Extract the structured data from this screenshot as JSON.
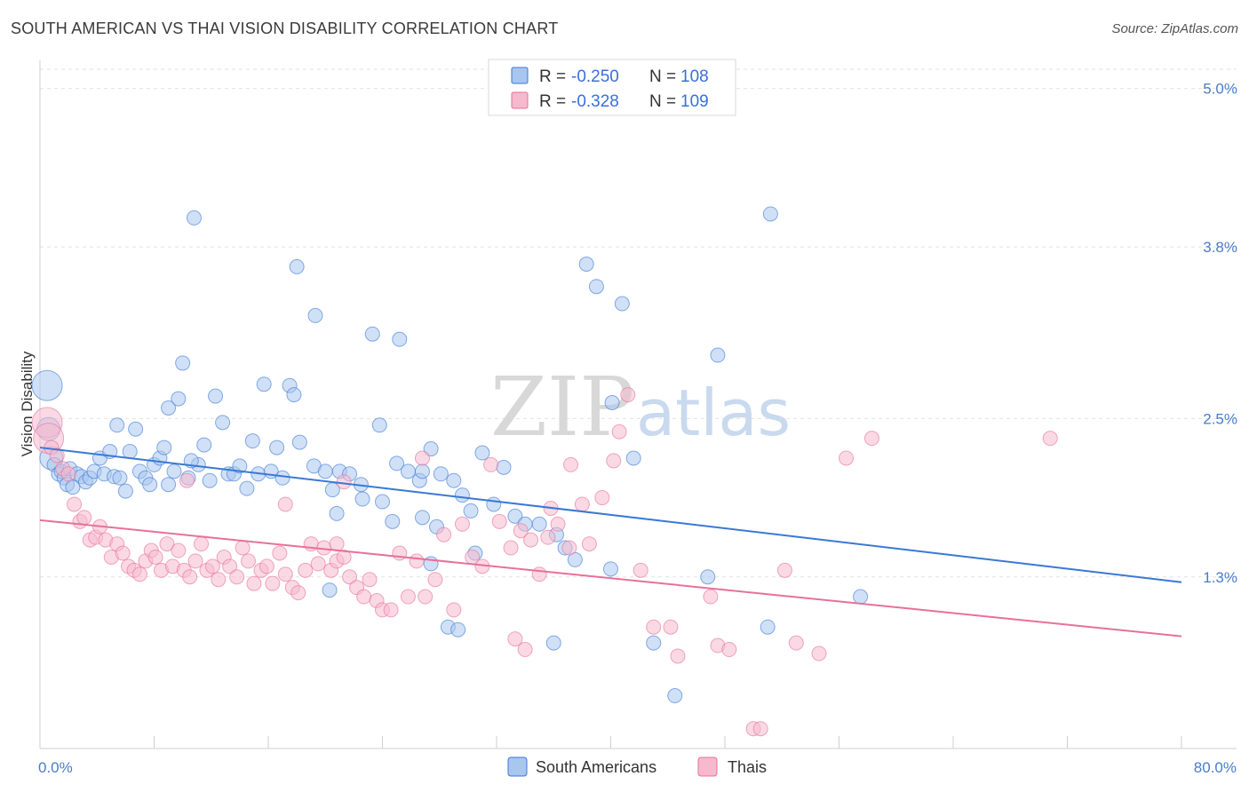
{
  "title": "SOUTH AMERICAN VS THAI VISION DISABILITY CORRELATION CHART",
  "source": "Source: ZipAtlas.com",
  "watermark": {
    "zip": "ZIP",
    "atlas": "atlas"
  },
  "colors": {
    "blue": "#3a78d6",
    "blue_fill": "#a9c6ef",
    "pink": "#e8709a",
    "pink_fill": "#f6b9cd",
    "axis_label": "#4a7cc9"
  },
  "legend": {
    "rows": [
      {
        "r_label": "R =",
        "r_value": "-0.250",
        "n_label": "N =",
        "n_value": "108"
      },
      {
        "r_label": "R =",
        "r_value": "-0.328",
        "n_label": "N =",
        "n_value": "109"
      }
    ]
  },
  "chart_data": {
    "type": "scatter",
    "title": "SOUTH AMERICAN VS THAI VISION DISABILITY CORRELATION CHART",
    "xlabel": "",
    "ylabel": "Vision Disability",
    "xlim": [
      0,
      80
    ],
    "ylim": [
      0.0,
      5.2
    ],
    "x_tick_labels": [
      "0.0%",
      "80.0%"
    ],
    "y_ticks": [
      1.3,
      2.5,
      3.8,
      5.0
    ],
    "y_tick_labels": [
      "1.3%",
      "2.5%",
      "3.8%",
      "5.0%"
    ],
    "grid": true,
    "legend_position": "top-center",
    "series": [
      {
        "name": "South Americans",
        "color": "#3a78d6",
        "trend": {
          "x": [
            0,
            80
          ],
          "y": [
            2.28,
            1.26
          ]
        },
        "points": [
          [
            0.5,
            2.75
          ],
          [
            0.6,
            2.42
          ],
          [
            0.8,
            2.2
          ],
          [
            1.0,
            2.15
          ],
          [
            1.3,
            2.08
          ],
          [
            1.5,
            2.1
          ],
          [
            1.7,
            2.05
          ],
          [
            1.9,
            2.0
          ],
          [
            2.1,
            2.12
          ],
          [
            2.3,
            1.98
          ],
          [
            2.6,
            2.08
          ],
          [
            2.9,
            2.06
          ],
          [
            3.2,
            2.02
          ],
          [
            3.5,
            2.05
          ],
          [
            3.8,
            2.1
          ],
          [
            4.2,
            2.2
          ],
          [
            4.5,
            2.08
          ],
          [
            4.9,
            2.25
          ],
          [
            5.2,
            2.06
          ],
          [
            5.6,
            2.05
          ],
          [
            6.0,
            1.95
          ],
          [
            6.3,
            2.25
          ],
          [
            6.7,
            2.42
          ],
          [
            7.0,
            2.1
          ],
          [
            7.4,
            2.05
          ],
          [
            7.7,
            2.0
          ],
          [
            8.0,
            2.15
          ],
          [
            8.4,
            2.2
          ],
          [
            8.7,
            2.28
          ],
          [
            9.0,
            2.0
          ],
          [
            9.4,
            2.1
          ],
          [
            9.7,
            2.65
          ],
          [
            10.0,
            2.92
          ],
          [
            10.4,
            2.05
          ],
          [
            10.8,
            4.02
          ],
          [
            11.1,
            2.15
          ],
          [
            11.5,
            2.3
          ],
          [
            11.9,
            2.03
          ],
          [
            12.3,
            2.67
          ],
          [
            12.8,
            2.47
          ],
          [
            13.2,
            2.08
          ],
          [
            13.6,
            2.08
          ],
          [
            14.0,
            2.14
          ],
          [
            14.5,
            1.97
          ],
          [
            14.9,
            2.33
          ],
          [
            15.3,
            2.08
          ],
          [
            15.7,
            2.76
          ],
          [
            16.2,
            2.1
          ],
          [
            16.6,
            2.28
          ],
          [
            17.0,
            2.05
          ],
          [
            17.5,
            2.75
          ],
          [
            17.8,
            2.68
          ],
          [
            18.2,
            2.32
          ],
          [
            19.2,
            2.14
          ],
          [
            20.0,
            2.1
          ],
          [
            20.5,
            1.96
          ],
          [
            21.0,
            2.1
          ],
          [
            21.7,
            2.08
          ],
          [
            22.5,
            2.0
          ],
          [
            23.3,
            3.14
          ],
          [
            24.0,
            1.87
          ],
          [
            25.0,
            2.16
          ],
          [
            25.8,
            2.1
          ],
          [
            26.6,
            2.03
          ],
          [
            27.4,
            2.27
          ],
          [
            28.1,
            2.08
          ],
          [
            29.0,
            2.03
          ],
          [
            29.6,
            1.92
          ],
          [
            30.2,
            1.8
          ],
          [
            31.0,
            2.24
          ],
          [
            31.8,
            1.85
          ],
          [
            32.5,
            2.13
          ],
          [
            33.3,
            1.76
          ],
          [
            34.0,
            1.7
          ],
          [
            35.0,
            1.7
          ],
          [
            36.2,
            1.62
          ],
          [
            36.8,
            1.52
          ],
          [
            37.5,
            1.43
          ],
          [
            38.3,
            3.67
          ],
          [
            39.0,
            3.5
          ],
          [
            40.1,
            2.62
          ],
          [
            40.8,
            3.37
          ],
          [
            41.6,
            2.2
          ],
          [
            43.0,
            0.8
          ],
          [
            44.5,
            0.4
          ],
          [
            23.8,
            2.45
          ],
          [
            18.0,
            3.65
          ],
          [
            25.2,
            3.1
          ],
          [
            19.3,
            3.28
          ],
          [
            9.0,
            2.58
          ],
          [
            10.6,
            2.18
          ],
          [
            5.4,
            2.45
          ],
          [
            20.8,
            1.78
          ],
          [
            22.6,
            1.89
          ],
          [
            24.7,
            1.72
          ],
          [
            27.8,
            1.68
          ],
          [
            30.5,
            1.48
          ],
          [
            26.8,
            1.75
          ],
          [
            20.3,
            1.2
          ],
          [
            27.4,
            1.4
          ],
          [
            28.6,
            0.92
          ],
          [
            29.3,
            0.9
          ],
          [
            40.0,
            1.36
          ],
          [
            46.8,
            1.3
          ],
          [
            51.2,
            4.05
          ],
          [
            57.5,
            1.15
          ],
          [
            36.0,
            0.8
          ],
          [
            47.5,
            2.98
          ],
          [
            51.0,
            0.92
          ],
          [
            26.8,
            2.1
          ]
        ]
      },
      {
        "name": "Thais",
        "color": "#e8709a",
        "trend": {
          "x": [
            0,
            80
          ],
          "y": [
            1.73,
            0.85
          ]
        },
        "points": [
          [
            0.5,
            2.47
          ],
          [
            0.6,
            2.35
          ],
          [
            0.8,
            2.28
          ],
          [
            1.2,
            2.22
          ],
          [
            1.6,
            2.12
          ],
          [
            2.0,
            2.08
          ],
          [
            2.4,
            1.85
          ],
          [
            2.8,
            1.72
          ],
          [
            3.1,
            1.75
          ],
          [
            3.5,
            1.58
          ],
          [
            3.9,
            1.6
          ],
          [
            4.2,
            1.68
          ],
          [
            4.6,
            1.58
          ],
          [
            5.0,
            1.45
          ],
          [
            5.4,
            1.55
          ],
          [
            5.8,
            1.48
          ],
          [
            6.2,
            1.38
          ],
          [
            6.6,
            1.35
          ],
          [
            7.0,
            1.32
          ],
          [
            7.4,
            1.42
          ],
          [
            7.8,
            1.5
          ],
          [
            8.1,
            1.45
          ],
          [
            8.5,
            1.35
          ],
          [
            8.9,
            1.55
          ],
          [
            9.3,
            1.38
          ],
          [
            9.7,
            1.5
          ],
          [
            10.1,
            1.35
          ],
          [
            10.5,
            1.3
          ],
          [
            10.9,
            1.42
          ],
          [
            11.3,
            1.55
          ],
          [
            11.7,
            1.35
          ],
          [
            12.1,
            1.38
          ],
          [
            12.5,
            1.28
          ],
          [
            12.9,
            1.45
          ],
          [
            13.3,
            1.38
          ],
          [
            13.8,
            1.3
          ],
          [
            14.2,
            1.52
          ],
          [
            14.6,
            1.42
          ],
          [
            15.0,
            1.25
          ],
          [
            15.5,
            1.35
          ],
          [
            15.9,
            1.38
          ],
          [
            16.3,
            1.25
          ],
          [
            16.8,
            1.48
          ],
          [
            17.2,
            1.32
          ],
          [
            17.7,
            1.22
          ],
          [
            18.1,
            1.18
          ],
          [
            18.6,
            1.35
          ],
          [
            19.0,
            1.55
          ],
          [
            19.5,
            1.4
          ],
          [
            19.9,
            1.52
          ],
          [
            20.4,
            1.35
          ],
          [
            20.8,
            1.42
          ],
          [
            21.3,
            1.45
          ],
          [
            21.7,
            1.3
          ],
          [
            22.2,
            1.22
          ],
          [
            22.7,
            1.15
          ],
          [
            23.1,
            1.28
          ],
          [
            23.6,
            1.12
          ],
          [
            24.0,
            1.05
          ],
          [
            24.6,
            1.05
          ],
          [
            25.2,
            1.48
          ],
          [
            25.8,
            1.15
          ],
          [
            26.4,
            1.42
          ],
          [
            27.0,
            1.15
          ],
          [
            27.7,
            1.28
          ],
          [
            28.3,
            1.62
          ],
          [
            29.0,
            1.05
          ],
          [
            29.6,
            1.7
          ],
          [
            30.3,
            1.45
          ],
          [
            31.0,
            1.38
          ],
          [
            31.6,
            2.15
          ],
          [
            32.2,
            1.72
          ],
          [
            33.0,
            1.52
          ],
          [
            33.7,
            1.65
          ],
          [
            34.4,
            1.58
          ],
          [
            35.0,
            1.32
          ],
          [
            35.6,
            1.6
          ],
          [
            36.3,
            1.7
          ],
          [
            37.1,
            1.52
          ],
          [
            38.5,
            1.55
          ],
          [
            39.4,
            1.9
          ],
          [
            40.2,
            2.18
          ],
          [
            41.2,
            2.68
          ],
          [
            42.1,
            1.35
          ],
          [
            43.0,
            0.92
          ],
          [
            44.2,
            0.92
          ],
          [
            47.0,
            1.15
          ],
          [
            47.5,
            0.78
          ],
          [
            48.3,
            0.75
          ],
          [
            50.0,
            0.15
          ],
          [
            50.5,
            0.15
          ],
          [
            52.2,
            1.35
          ],
          [
            53.0,
            0.8
          ],
          [
            54.6,
            0.72
          ],
          [
            56.5,
            2.2
          ],
          [
            58.3,
            2.35
          ],
          [
            20.8,
            1.55
          ],
          [
            17.2,
            1.85
          ],
          [
            10.3,
            2.03
          ],
          [
            21.3,
            2.02
          ],
          [
            37.2,
            2.15
          ],
          [
            38.0,
            1.85
          ],
          [
            26.8,
            2.2
          ],
          [
            34.0,
            0.75
          ],
          [
            35.8,
            1.82
          ],
          [
            44.7,
            0.7
          ],
          [
            33.3,
            0.83
          ],
          [
            40.6,
            2.4
          ],
          [
            70.8,
            2.35
          ]
        ]
      }
    ]
  },
  "bottom_legend": [
    {
      "label": "South Americans"
    },
    {
      "label": "Thais"
    }
  ]
}
